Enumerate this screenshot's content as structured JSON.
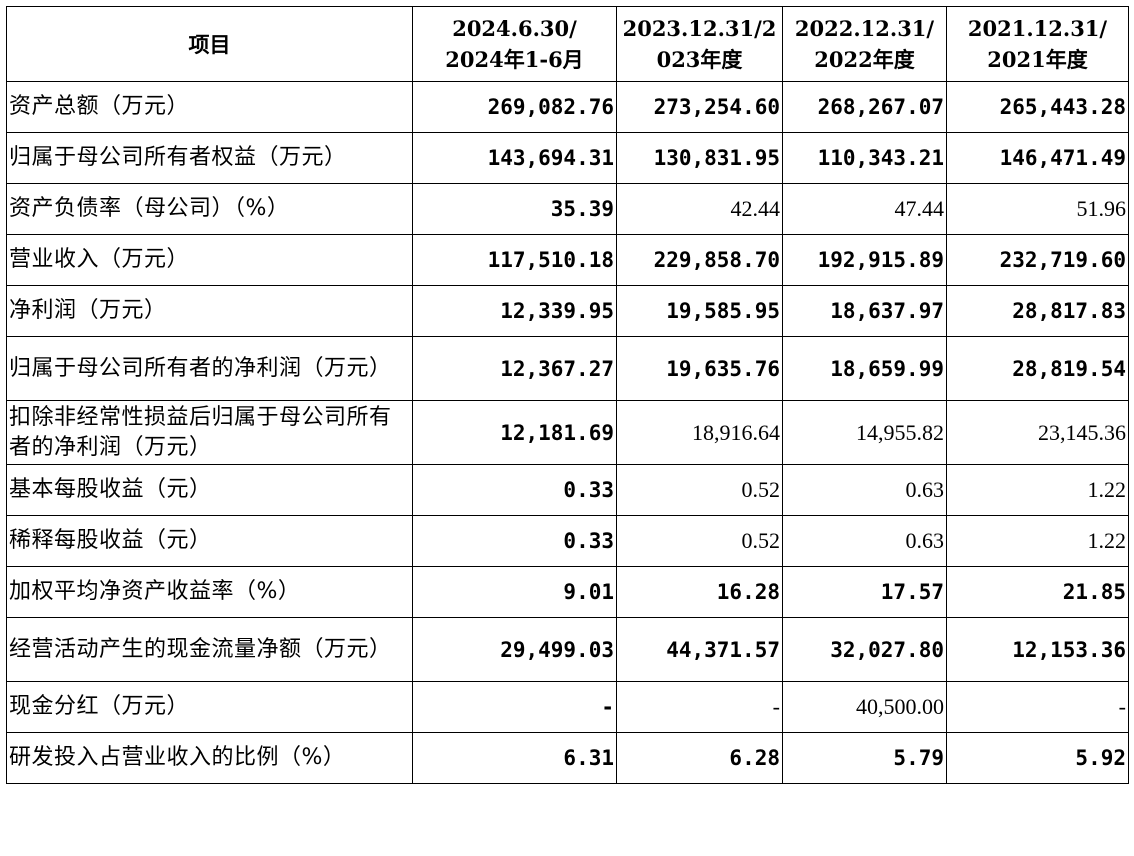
{
  "header": {
    "item": "项目",
    "periods": [
      "2024.6.30/\n2024年1-6月",
      "2023.12.31/2\n023年度",
      "2022.12.31/\n2022年度",
      "2021.12.31/\n2021年度"
    ]
  },
  "rows": [
    {
      "label": "资产总额（万元）",
      "values": [
        "269,082.76",
        "273,254.60",
        "268,267.07",
        "265,443.28"
      ]
    },
    {
      "label": "归属于母公司所有者权益（万元）",
      "values": [
        "143,694.31",
        "130,831.95",
        "110,343.21",
        "146,471.49"
      ]
    },
    {
      "label": "资产负债率（母公司）（%）",
      "values": [
        "35.39",
        "42.44",
        "47.44",
        "51.96"
      ]
    },
    {
      "label": "营业收入（万元）",
      "values": [
        "117,510.18",
        "229,858.70",
        "192,915.89",
        "232,719.60"
      ]
    },
    {
      "label": "净利润（万元）",
      "values": [
        "12,339.95",
        "19,585.95",
        "18,637.97",
        "28,817.83"
      ]
    },
    {
      "label": "归属于母公司所有者的净利润（万元）",
      "values": [
        "12,367.27",
        "19,635.76",
        "18,659.99",
        "28,819.54"
      ]
    },
    {
      "label": "扣除非经常性损益后归属于母公司所有者的净利润（万元）",
      "values": [
        "12,181.69",
        "18,916.64",
        "14,955.82",
        "23,145.36"
      ]
    },
    {
      "label": "基本每股收益（元）",
      "values": [
        "0.33",
        "0.52",
        "0.63",
        "1.22"
      ]
    },
    {
      "label": "稀释每股收益（元）",
      "values": [
        "0.33",
        "0.52",
        "0.63",
        "1.22"
      ]
    },
    {
      "label": "加权平均净资产收益率（%）",
      "values": [
        "9.01",
        "16.28",
        "17.57",
        "21.85"
      ]
    },
    {
      "label": "经营活动产生的现金流量净额（万元）",
      "values": [
        "29,499.03",
        "44,371.57",
        "32,027.80",
        "12,153.36"
      ]
    },
    {
      "label": "现金分红（万元）",
      "values": [
        "-",
        "-",
        "40,500.00",
        "-"
      ]
    },
    {
      "label": "研发投入占营业收入的比例（%）",
      "values": [
        "6.31",
        "6.28",
        "5.79",
        "5.92"
      ]
    }
  ]
}
